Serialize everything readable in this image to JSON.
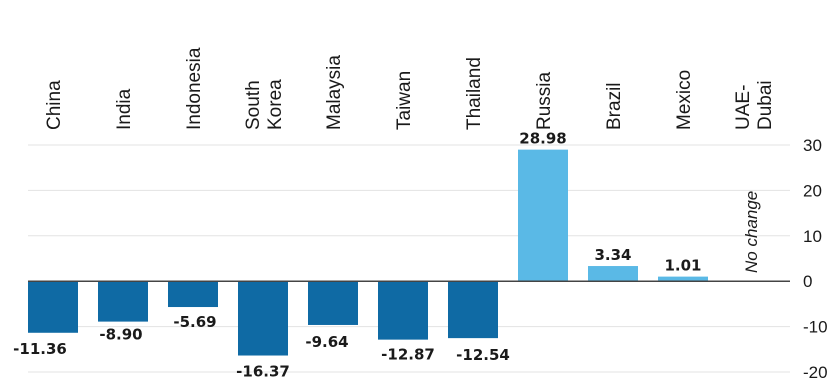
{
  "chart_data": {
    "type": "bar",
    "categories": [
      {
        "lines": [
          "China"
        ]
      },
      {
        "lines": [
          "India"
        ]
      },
      {
        "lines": [
          "Indonesia"
        ]
      },
      {
        "lines": [
          "South",
          "Korea"
        ]
      },
      {
        "lines": [
          "Malaysia"
        ]
      },
      {
        "lines": [
          "Taiwan"
        ]
      },
      {
        "lines": [
          "Thailand"
        ]
      },
      {
        "lines": [
          "Russia"
        ]
      },
      {
        "lines": [
          "Brazil"
        ]
      },
      {
        "lines": [
          "Mexico"
        ]
      },
      {
        "lines": [
          "UAE-",
          "Dubai"
        ]
      }
    ],
    "values": [
      -11.36,
      -8.9,
      -5.69,
      -16.37,
      -9.64,
      -12.87,
      -12.54,
      28.98,
      3.34,
      1.01,
      null
    ],
    "value_labels": [
      "-11.36",
      "-8.90",
      "-5.69",
      "-16.37",
      "-9.64",
      "-12.87",
      "-12.54",
      "28.98",
      "3.34",
      "1.01",
      ""
    ],
    "annotation": "No change",
    "yticks": [
      "30",
      "20",
      "10",
      "0",
      "-10",
      "-20"
    ],
    "ylim": [
      -20,
      30
    ],
    "grid": true,
    "colors": {
      "negative": "#0f6aa4",
      "positive": "#5ab9e6"
    }
  }
}
